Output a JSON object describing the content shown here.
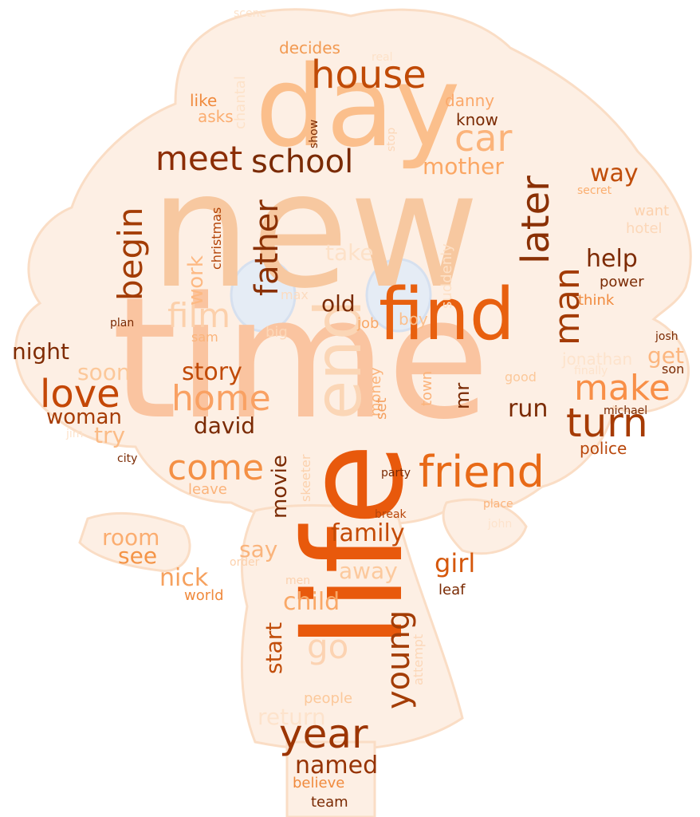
{
  "title": "word cloud",
  "palette": {
    "background": "#ffffff",
    "shape_fill": "#fde9d8",
    "shape_line": "#f7c8a4"
  },
  "words": [
    {
      "id": "new",
      "text": "new",
      "color": "#f7c8a0"
    },
    {
      "id": "time",
      "text": "time",
      "color": "#fac4a0"
    },
    {
      "id": "day",
      "text": "day",
      "color": "#fbbf8c"
    },
    {
      "id": "life",
      "text": "life",
      "color": "#e8590c"
    },
    {
      "id": "find",
      "text": "find",
      "color": "#e8600f"
    },
    {
      "id": "end",
      "text": "end",
      "color": "#fbd6b6"
    },
    {
      "id": "friend",
      "text": "friend",
      "color": "#e86a17"
    },
    {
      "id": "house",
      "text": "house",
      "color": "#c04a06"
    },
    {
      "id": "year",
      "text": "year",
      "color": "#9c3503"
    },
    {
      "id": "home",
      "text": "home",
      "color": "#f9a163"
    },
    {
      "id": "come",
      "text": "come",
      "color": "#f49045"
    },
    {
      "id": "love",
      "text": "love",
      "color": "#c44706"
    },
    {
      "id": "turn",
      "text": "turn",
      "color": "#a63b04"
    },
    {
      "id": "make",
      "text": "make",
      "color": "#f88f47"
    },
    {
      "id": "meet",
      "text": "meet",
      "color": "#8c2d04"
    },
    {
      "id": "school",
      "text": "school",
      "color": "#7a2a03"
    },
    {
      "id": "car",
      "text": "car",
      "color": "#fbb37a"
    },
    {
      "id": "begin",
      "text": "begin",
      "color": "#a33c05"
    },
    {
      "id": "later",
      "text": "later",
      "color": "#8a3004"
    },
    {
      "id": "man",
      "text": "man",
      "color": "#a33b05"
    },
    {
      "id": "father",
      "text": "father",
      "color": "#8a3004"
    },
    {
      "id": "young",
      "text": "young",
      "color": "#a33c05"
    },
    {
      "id": "film",
      "text": "film",
      "color": "#fcd0ab"
    },
    {
      "id": "go",
      "text": "go",
      "color": "#fcd3b2"
    },
    {
      "id": "mother",
      "text": "mother",
      "color": "#fba764"
    },
    {
      "id": "help",
      "text": "help",
      "color": "#7d2a03"
    },
    {
      "id": "way",
      "text": "way",
      "color": "#c04d0a"
    },
    {
      "id": "family",
      "text": "family",
      "color": "#c44a05"
    },
    {
      "id": "story",
      "text": "story",
      "color": "#c14a07"
    },
    {
      "id": "night",
      "text": "night",
      "color": "#7f2b03"
    },
    {
      "id": "woman",
      "text": "woman",
      "color": "#a63c05"
    },
    {
      "id": "david",
      "text": "david",
      "color": "#7a2a03"
    },
    {
      "id": "girl",
      "text": "girl",
      "color": "#d5570b"
    },
    {
      "id": "nick",
      "text": "nick",
      "color": "#f6a15e"
    },
    {
      "id": "child",
      "text": "child",
      "color": "#f9a867"
    },
    {
      "id": "named",
      "text": "named",
      "color": "#963303"
    },
    {
      "id": "room",
      "text": "room",
      "color": "#fbad70"
    },
    {
      "id": "see",
      "text": "see",
      "color": "#f49447"
    },
    {
      "id": "say",
      "text": "say",
      "color": "#fab47c"
    },
    {
      "id": "away",
      "text": "away",
      "color": "#fcc99d"
    },
    {
      "id": "run",
      "text": "run",
      "color": "#7a2a03"
    },
    {
      "id": "soon",
      "text": "soon",
      "color": "#fcc89a"
    },
    {
      "id": "try",
      "text": "try",
      "color": "#fbbb86"
    },
    {
      "id": "old",
      "text": "old",
      "color": "#7a2a03"
    },
    {
      "id": "work",
      "text": "work",
      "color": "#fdb983"
    },
    {
      "id": "take",
      "text": "take",
      "color": "#fde1c8"
    },
    {
      "id": "start",
      "text": "start",
      "color": "#c14d0a"
    },
    {
      "id": "movie",
      "text": "movie",
      "color": "#7a2a03"
    },
    {
      "id": "return",
      "text": "return",
      "color": "#fde3cc"
    },
    {
      "id": "get",
      "text": "get",
      "color": "#fcb67f"
    },
    {
      "id": "mr",
      "text": "mr",
      "color": "#7a2a03"
    },
    {
      "id": "police",
      "text": "police",
      "color": "#b8460a"
    },
    {
      "id": "decides",
      "text": "decides",
      "color": "#f29a52"
    },
    {
      "id": "like",
      "text": "like",
      "color": "#f08a3d"
    },
    {
      "id": "asks",
      "text": "asks",
      "color": "#fbad70"
    },
    {
      "id": "danny",
      "text": "danny",
      "color": "#fba96b"
    },
    {
      "id": "know",
      "text": "know",
      "color": "#7a2a03"
    },
    {
      "id": "chantal",
      "text": "chantal",
      "color": "#fde2c9"
    },
    {
      "id": "show",
      "text": "show",
      "color": "#7a2a03"
    },
    {
      "id": "real",
      "text": "real",
      "color": "#fde2c9"
    },
    {
      "id": "scene",
      "text": "scene",
      "color": "#fde2c9"
    },
    {
      "id": "stop",
      "text": "stop",
      "color": "#fcd7b8"
    },
    {
      "id": "christmas",
      "text": "christmas",
      "color": "#b34306"
    },
    {
      "id": "secret",
      "text": "secret",
      "color": "#fbae6f"
    },
    {
      "id": "want",
      "text": "want",
      "color": "#fcd1ad"
    },
    {
      "id": "hotel",
      "text": "hotel",
      "color": "#fcd7b8"
    },
    {
      "id": "power",
      "text": "power",
      "color": "#7a2a03"
    },
    {
      "id": "think",
      "text": "think",
      "color": "#f08a3d"
    },
    {
      "id": "plan",
      "text": "plan",
      "color": "#7a2a03"
    },
    {
      "id": "max",
      "text": "max",
      "color": "#fcdcc0"
    },
    {
      "id": "big",
      "text": "big",
      "color": "#fcd7b8"
    },
    {
      "id": "job",
      "text": "job",
      "color": "#f9a867"
    },
    {
      "id": "boy",
      "text": "boy",
      "color": "#fbbf8c"
    },
    {
      "id": "suddenly",
      "text": "suddenly",
      "color": "#fde0c6"
    },
    {
      "id": "sam",
      "text": "sam",
      "color": "#fab47c"
    },
    {
      "id": "josh",
      "text": "josh",
      "color": "#7a2a03"
    },
    {
      "id": "jonathan",
      "text": "jonathan",
      "color": "#fde3cc"
    },
    {
      "id": "son",
      "text": "son",
      "color": "#7a2a03"
    },
    {
      "id": "finally",
      "text": "finally",
      "color": "#fde3cc"
    },
    {
      "id": "good",
      "text": "good",
      "color": "#fcc89a"
    },
    {
      "id": "town",
      "text": "town",
      "color": "#fbb37a"
    },
    {
      "id": "money",
      "text": "money",
      "color": "#fbb37a"
    },
    {
      "id": "set",
      "text": "set",
      "color": "#f4a060"
    },
    {
      "id": "michael",
      "text": "michael",
      "color": "#7a2a03"
    },
    {
      "id": "jim",
      "text": "jim",
      "color": "#fde3cc"
    },
    {
      "id": "city",
      "text": "city",
      "color": "#7a2a03"
    },
    {
      "id": "leave",
      "text": "leave",
      "color": "#fbb37a"
    },
    {
      "id": "skeeter",
      "text": "skeeter",
      "color": "#fcd1ad"
    },
    {
      "id": "party",
      "text": "party",
      "color": "#7a2a03"
    },
    {
      "id": "break",
      "text": "break",
      "color": "#b8460a"
    },
    {
      "id": "place",
      "text": "place",
      "color": "#fbb37a"
    },
    {
      "id": "john",
      "text": "john",
      "color": "#fde3cc"
    },
    {
      "id": "order",
      "text": "order",
      "color": "#fcd1ad"
    },
    {
      "id": "men",
      "text": "men",
      "color": "#fcd1ad"
    },
    {
      "id": "leaf",
      "text": "leaf",
      "color": "#7a2a03"
    },
    {
      "id": "world",
      "text": "world",
      "color": "#f08a3d"
    },
    {
      "id": "attempt",
      "text": "attempt",
      "color": "#fcd7b8"
    },
    {
      "id": "people",
      "text": "people",
      "color": "#fcc89a"
    },
    {
      "id": "believe",
      "text": "believe",
      "color": "#f08a3d"
    },
    {
      "id": "team",
      "text": "team",
      "color": "#7a2a03"
    }
  ]
}
